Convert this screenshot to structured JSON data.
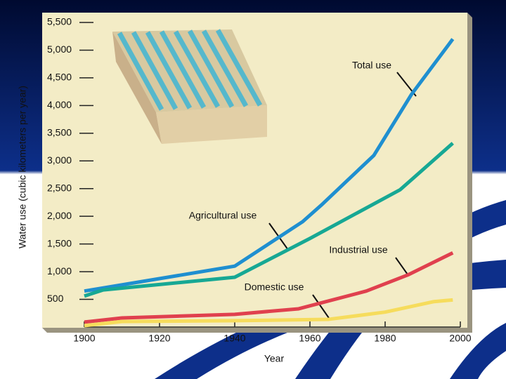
{
  "chart_data": {
    "type": "line",
    "ylabel": "Water use (cubic kilometers per year)",
    "xlabel": "Year",
    "xlim": [
      1900,
      2000
    ],
    "xticks": [
      1900,
      1920,
      1940,
      1960,
      1980,
      2000
    ],
    "ylim": [
      0,
      5500
    ],
    "yticks": [
      500,
      {
        "value": 1000,
        "label": "1,000"
      },
      {
        "value": 1500,
        "label": "1,500"
      },
      {
        "value": 2000,
        "label": "2,000"
      },
      {
        "value": 2500,
        "label": "2,500"
      },
      {
        "value": 3000,
        "label": "3,000"
      },
      {
        "value": 3500,
        "label": "3,500"
      },
      {
        "value": 4000,
        "label": "4,000"
      },
      {
        "value": 4500,
        "label": "4,500"
      },
      {
        "value": 5000,
        "label": "5,000"
      },
      {
        "value": 5500,
        "label": "5,500"
      }
    ],
    "series": [
      {
        "name": "Total use",
        "color": "#1f8fd0",
        "x": [
          1900,
          1940,
          1958,
          1963,
          1977,
          1987,
          1998
        ],
        "values": [
          650,
          1100,
          1900,
          2200,
          3100,
          4200,
          5200
        ]
      },
      {
        "name": "Agricultural use",
        "color": "#17a894",
        "x": [
          1900,
          1905,
          1940,
          1960,
          1984,
          1998
        ],
        "values": [
          560,
          670,
          900,
          1600,
          2480,
          3320
        ]
      },
      {
        "name": "Industrial use",
        "color": "#e0404e",
        "x": [
          1900,
          1910,
          1940,
          1957,
          1975,
          1986,
          1998
        ],
        "values": [
          90,
          165,
          230,
          330,
          650,
          940,
          1340
        ]
      },
      {
        "name": "Domestic use",
        "color": "#f6dc5c",
        "x": [
          1900,
          1910,
          1940,
          1965,
          1980,
          1993,
          1998
        ],
        "values": [
          25,
          100,
          115,
          140,
          270,
          460,
          490
        ]
      }
    ]
  }
}
